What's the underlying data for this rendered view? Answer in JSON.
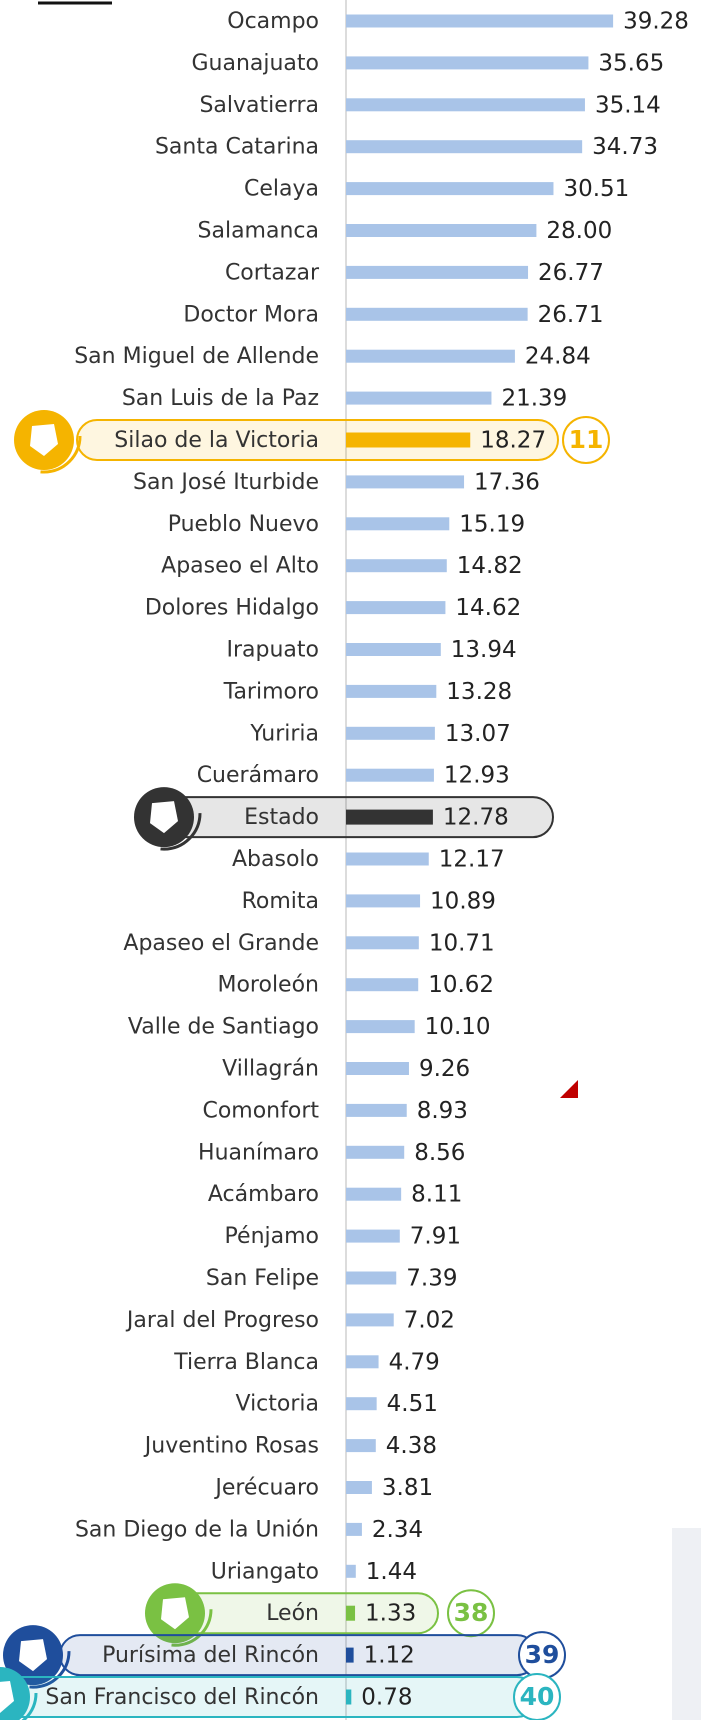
{
  "chart_data": {
    "type": "bar",
    "orientation": "horizontal",
    "categories": [
      "Ocampo",
      "Guanajuato",
      "Salvatierra",
      "Santa Catarina",
      "Celaya",
      "Salamanca",
      "Cortazar",
      "Doctor Mora",
      "San Miguel de Allende",
      "San Luis de la Paz",
      "Silao de la Victoria",
      "San José Iturbide",
      "Pueblo Nuevo",
      "Apaseo el Alto",
      "Dolores Hidalgo",
      "Irapuato",
      "Tarimoro",
      "Yuriria",
      "Cuerámaro",
      "Estado",
      "Abasolo",
      "Romita",
      "Apaseo el Grande",
      "Moroleón",
      "Valle de Santiago",
      "Villagrán",
      "Comonfort",
      "Huanímaro",
      "Acámbaro",
      "Pénjamo",
      "San Felipe",
      "Jaral del Progreso",
      "Tierra Blanca",
      "Victoria",
      "Juventino Rosas",
      "Jerécuaro",
      "San Diego de la Unión",
      "Uriangato",
      "León",
      "Purísima del Rincón",
      "San Francisco del Rincón"
    ],
    "values": [
      39.28,
      35.65,
      35.14,
      34.73,
      30.51,
      28.0,
      26.77,
      26.71,
      24.84,
      21.39,
      18.27,
      17.36,
      15.19,
      14.82,
      14.62,
      13.94,
      13.28,
      13.07,
      12.93,
      12.78,
      12.17,
      10.89,
      10.71,
      10.62,
      10.1,
      9.26,
      8.93,
      8.56,
      8.11,
      7.91,
      7.39,
      7.02,
      4.79,
      4.51,
      4.38,
      3.81,
      2.34,
      1.44,
      1.33,
      1.12,
      0.78
    ],
    "value_labels": [
      "39.28",
      "35.65",
      "35.14",
      "34.73",
      "30.51",
      "28.00",
      "26.77",
      "26.71",
      "24.84",
      "21.39",
      "18.27",
      "17.36",
      "15.19",
      "14.82",
      "14.62",
      "13.94",
      "13.28",
      "13.07",
      "12.93",
      "12.78",
      "12.17",
      "10.89",
      "10.71",
      "10.62",
      "10.10",
      "9.26",
      "8.93",
      "8.56",
      "8.11",
      "7.91",
      "7.39",
      "7.02",
      "4.79",
      "4.51",
      "4.38",
      "3.81",
      "2.34",
      "1.44",
      "1.33",
      "1.12",
      "0.78"
    ],
    "colors": [
      "#a9c4e8",
      "#a9c4e8",
      "#a9c4e8",
      "#a9c4e8",
      "#a9c4e8",
      "#a9c4e8",
      "#a9c4e8",
      "#a9c4e8",
      "#a9c4e8",
      "#a9c4e8",
      "#f5b400",
      "#a9c4e8",
      "#a9c4e8",
      "#a9c4e8",
      "#a9c4e8",
      "#a9c4e8",
      "#a9c4e8",
      "#a9c4e8",
      "#a9c4e8",
      "#333333",
      "#a9c4e8",
      "#a9c4e8",
      "#a9c4e8",
      "#a9c4e8",
      "#a9c4e8",
      "#a9c4e8",
      "#a9c4e8",
      "#a9c4e8",
      "#a9c4e8",
      "#a9c4e8",
      "#a9c4e8",
      "#a9c4e8",
      "#a9c4e8",
      "#a9c4e8",
      "#a9c4e8",
      "#a9c4e8",
      "#a9c4e8",
      "#a9c4e8",
      "#7ac143",
      "#1f4e9c",
      "#2bb5c0"
    ],
    "ranks": [
      null,
      null,
      null,
      null,
      null,
      null,
      null,
      null,
      null,
      null,
      11,
      null,
      null,
      null,
      null,
      null,
      null,
      null,
      null,
      null,
      null,
      null,
      null,
      null,
      null,
      null,
      null,
      null,
      null,
      null,
      null,
      null,
      null,
      null,
      null,
      null,
      null,
      null,
      38,
      39,
      40
    ],
    "xlim": [
      0,
      40
    ]
  }
}
